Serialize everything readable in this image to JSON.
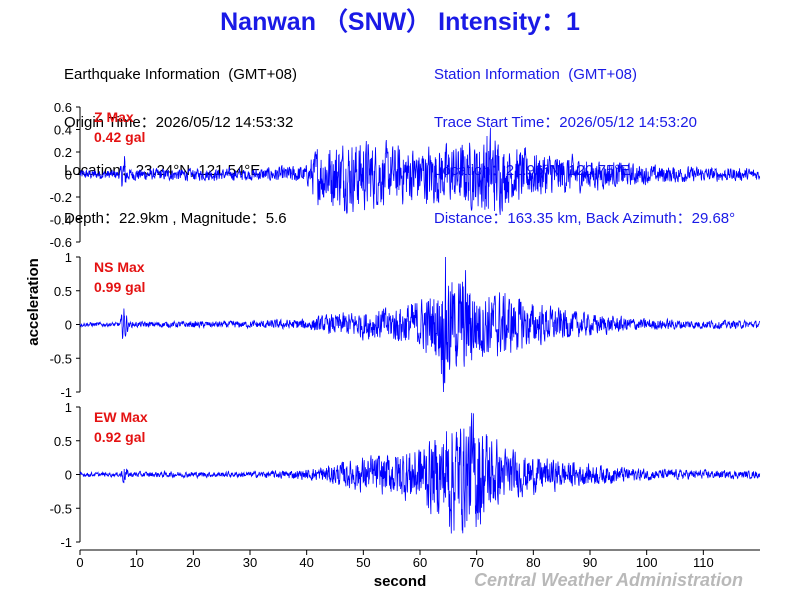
{
  "title": "Nanwan （SNW） Intensity：1",
  "earthquake_info": {
    "heading": "Earthquake Information  (GMT+08)",
    "origin_time": "Origin Time：2026/05/12 14:53:32",
    "location": "Location：23.24°N, 121.54°E",
    "depth_magnitude": "Depth：22.9km , Magnitude：5.6"
  },
  "station_info": {
    "heading": "Station Information  (GMT+08)",
    "trace_start": "Trace Start Time：2026/05/12 14:53:20",
    "location": "Location：21.96°N, 120.75°E",
    "distance": "Distance：163.35 km, Back Azimuth：29.68°"
  },
  "footer": {
    "credit": "Central Weather Administration"
  },
  "colors": {
    "trace": "#0000ff",
    "max_label": "#e41212",
    "title": "#1a1ae6",
    "credit": "#b9b9b9"
  },
  "chart_data": {
    "type": "line",
    "xlabel": "second",
    "ylabel": "acceleration",
    "x_range": [
      0,
      120
    ],
    "x_ticks": [
      0,
      10,
      20,
      30,
      40,
      50,
      60,
      70,
      80,
      90,
      100,
      110
    ],
    "x_tick_labels": [
      "0",
      "10",
      "20",
      "30",
      "40",
      "50",
      "60",
      "70",
      "80",
      "90",
      "100",
      "110"
    ],
    "grid": false,
    "panels": [
      {
        "component": "Z",
        "max_label": "Z Max",
        "max_value": "0.42 gal",
        "ylim": [
          -0.6,
          0.6
        ],
        "y_ticks": [
          0.6,
          0.4,
          0.2,
          0,
          -0.2,
          -0.4,
          -0.6
        ],
        "y_tick_labels": [
          "0.6",
          "0.4",
          "0.2",
          "0",
          "-0.2",
          "-0.4",
          "-0.6"
        ],
        "envelope": [
          [
            0,
            0.04
          ],
          [
            7,
            0.04
          ],
          [
            7.8,
            0.2
          ],
          [
            8.5,
            0.05
          ],
          [
            30,
            0.05
          ],
          [
            40,
            0.08
          ],
          [
            42,
            0.25
          ],
          [
            45,
            0.28
          ],
          [
            50,
            0.3
          ],
          [
            55,
            0.24
          ],
          [
            60,
            0.25
          ],
          [
            65,
            0.25
          ],
          [
            70,
            0.28
          ],
          [
            72,
            0.42
          ],
          [
            75,
            0.24
          ],
          [
            80,
            0.2
          ],
          [
            90,
            0.13
          ],
          [
            100,
            0.08
          ],
          [
            110,
            0.06
          ],
          [
            120,
            0.05
          ]
        ]
      },
      {
        "component": "NS",
        "max_label": "NS Max",
        "max_value": "0.99 gal",
        "ylim": [
          -1,
          1
        ],
        "y_ticks": [
          1,
          0.5,
          0,
          -0.5,
          -1
        ],
        "y_tick_labels": [
          "1",
          "0.5",
          "0",
          "-0.5",
          "-1"
        ],
        "envelope": [
          [
            0,
            0.03
          ],
          [
            7,
            0.03
          ],
          [
            7.8,
            0.3
          ],
          [
            8.6,
            0.04
          ],
          [
            30,
            0.05
          ],
          [
            40,
            0.08
          ],
          [
            45,
            0.15
          ],
          [
            50,
            0.2
          ],
          [
            55,
            0.25
          ],
          [
            60,
            0.35
          ],
          [
            63,
            0.5
          ],
          [
            64.5,
            0.99
          ],
          [
            66,
            0.6
          ],
          [
            68,
            0.75
          ],
          [
            70,
            0.5
          ],
          [
            75,
            0.45
          ],
          [
            80,
            0.3
          ],
          [
            90,
            0.15
          ],
          [
            100,
            0.08
          ],
          [
            110,
            0.06
          ],
          [
            120,
            0.05
          ]
        ]
      },
      {
        "component": "EW",
        "max_label": "EW Max",
        "max_value": "0.92 gal",
        "ylim": [
          -1,
          1
        ],
        "y_ticks": [
          1,
          0.5,
          0,
          -0.5,
          -1
        ],
        "y_tick_labels": [
          "1",
          "0.5",
          "0",
          "-0.5",
          "-1"
        ],
        "envelope": [
          [
            0,
            0.03
          ],
          [
            7,
            0.03
          ],
          [
            7.8,
            0.15
          ],
          [
            8.6,
            0.04
          ],
          [
            30,
            0.04
          ],
          [
            40,
            0.07
          ],
          [
            45,
            0.15
          ],
          [
            50,
            0.25
          ],
          [
            55,
            0.3
          ],
          [
            60,
            0.45
          ],
          [
            64,
            0.6
          ],
          [
            65,
            0.85
          ],
          [
            68,
            0.75
          ],
          [
            70,
            0.92
          ],
          [
            72,
            0.6
          ],
          [
            75,
            0.35
          ],
          [
            80,
            0.25
          ],
          [
            90,
            0.15
          ],
          [
            100,
            0.08
          ],
          [
            110,
            0.06
          ],
          [
            120,
            0.05
          ]
        ]
      }
    ]
  }
}
